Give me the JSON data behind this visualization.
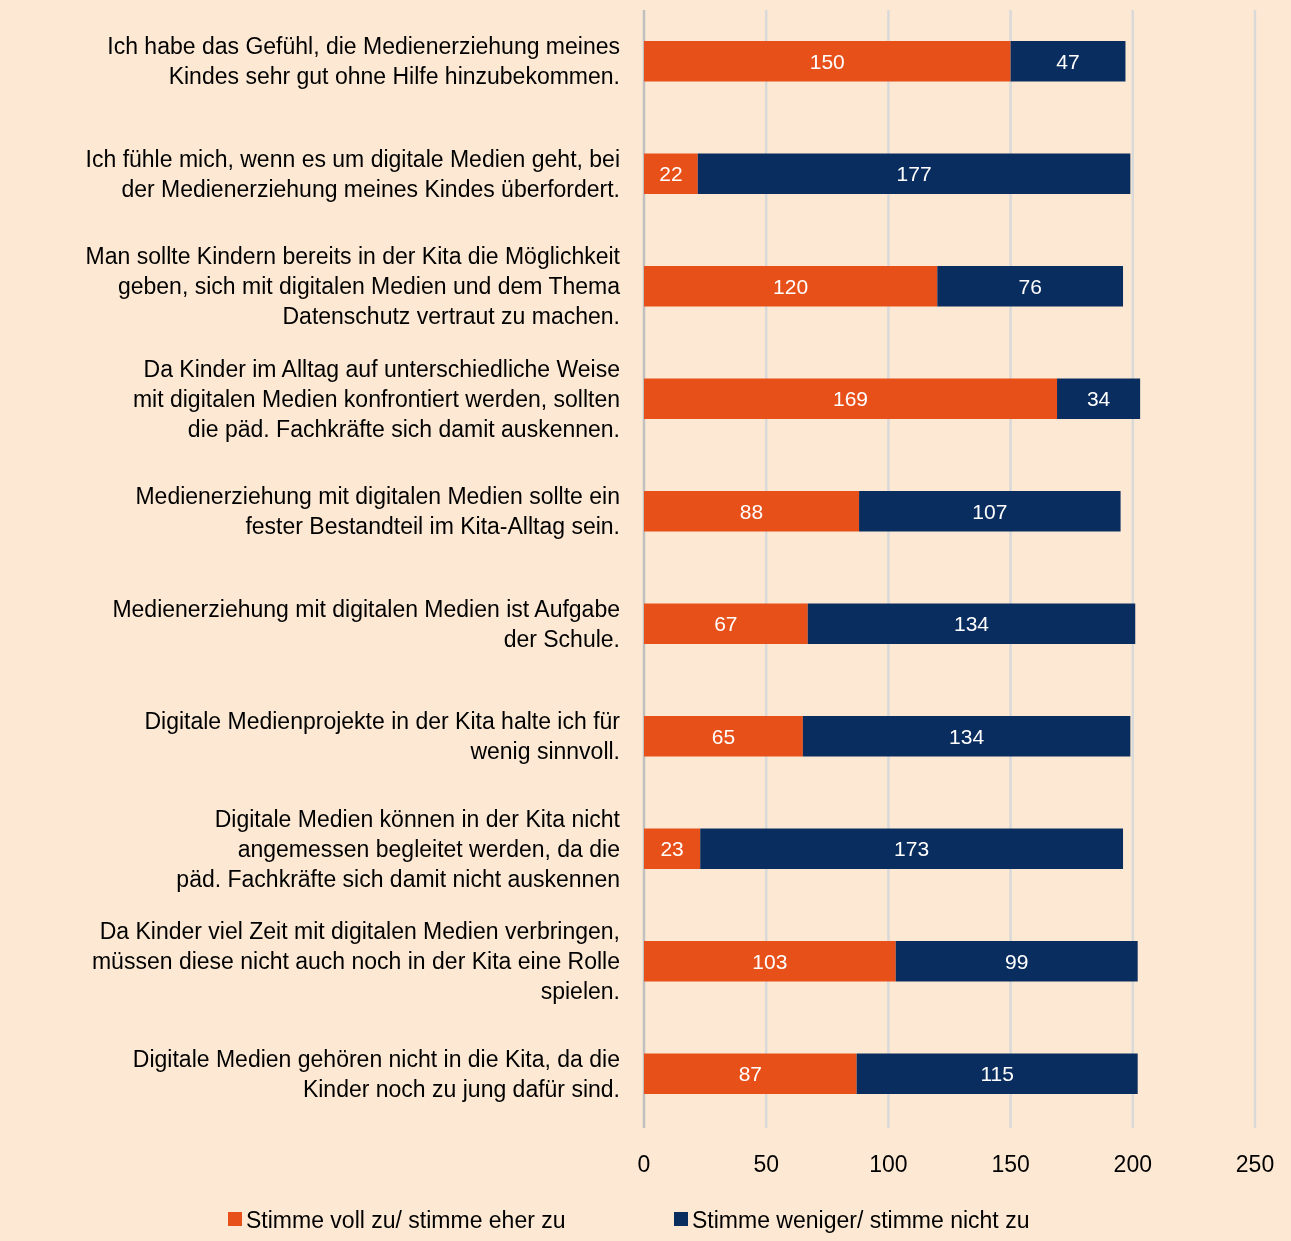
{
  "chart_data": {
    "type": "bar",
    "orientation": "horizontal",
    "stacked": true,
    "data_labels": true,
    "grid": "x",
    "legend": "bottom",
    "categories": [
      "Ich habe das Gefühl, die Medienerziehung meines\nKindes sehr gut ohne Hilfe hinzubekommen.",
      "Ich fühle mich, wenn es um digitale Medien geht, bei\nder Medienerziehung meines Kindes überfordert.",
      "Man sollte Kindern bereits in der Kita die Möglichkeit\ngeben, sich mit digitalen Medien und dem Thema\nDatenschutz vertraut zu machen.",
      "Da Kinder im Alltag auf unterschiedliche Weise\nmit digitalen Medien konfrontiert werden, sollten\ndie päd. Fachkräfte sich damit auskennen.",
      "Medienerziehung mit digitalen Medien sollte ein\nfester Bestandteil im Kita-Alltag sein.",
      "Medienerziehung mit digitalen Medien ist Aufgabe\nder Schule.",
      "Digitale Medienprojekte in der Kita halte ich für\nwenig sinnvoll.",
      "Digitale Medien können in der Kita nicht\nangemessen begleitet werden, da die\npäd. Fachkräfte sich damit nicht auskennen",
      "Da Kinder viel Zeit mit digitalen Medien verbringen,\nmüssen diese nicht auch noch in der Kita eine Rolle\nspielen.",
      "Digitale Medien gehören nicht in die Kita, da die\nKinder noch zu jung dafür sind."
    ],
    "series": [
      {
        "name": "Stimme voll zu/ stimme eher zu",
        "color": "#e8501a",
        "values": [
          150,
          22,
          120,
          169,
          88,
          67,
          65,
          23,
          103,
          87
        ]
      },
      {
        "name": "Stimme weniger/ stimme nicht zu",
        "color": "#0a2d5f",
        "values": [
          47,
          177,
          76,
          34,
          107,
          134,
          134,
          173,
          99,
          115
        ]
      }
    ],
    "xlim": [
      0,
      250
    ],
    "xticks": [
      0,
      50,
      100,
      150,
      200,
      250
    ]
  }
}
